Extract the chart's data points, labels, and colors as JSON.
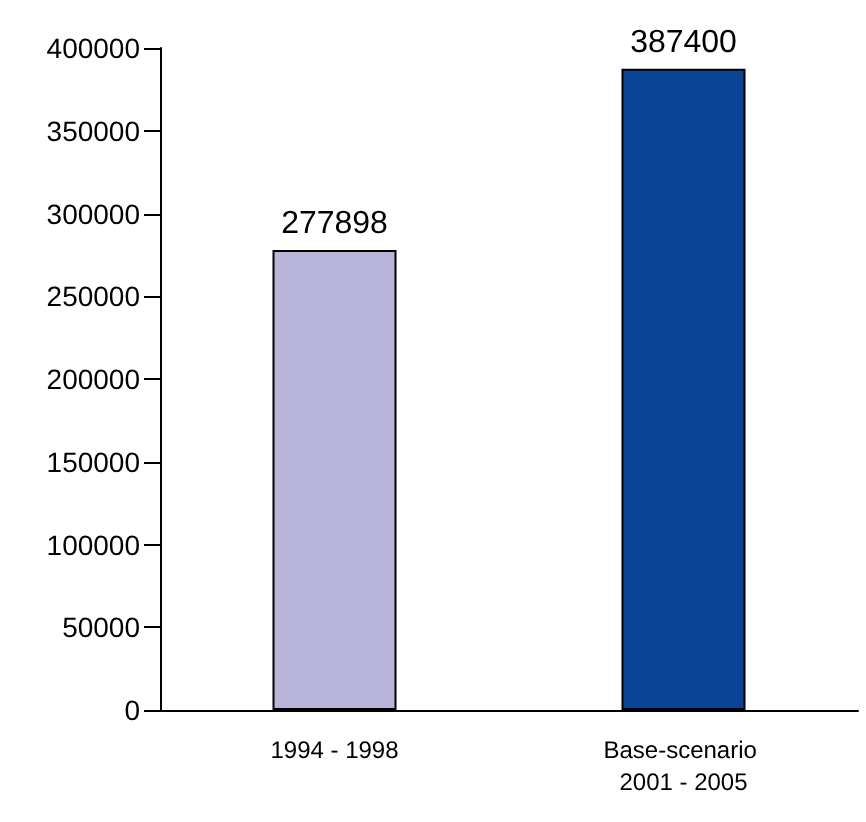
{
  "chart_data": {
    "type": "bar",
    "categories": [
      "1994 - 1998",
      "Base-scenario 2001 - 2005"
    ],
    "values": [
      277898,
      387400
    ],
    "colors": [
      "#b9b4da",
      "#0b4494"
    ],
    "ylim": [
      0,
      400000
    ],
    "yticks": [
      0,
      50000,
      100000,
      150000,
      200000,
      250000,
      300000,
      350000,
      400000
    ],
    "grid": false,
    "data_labels": true
  }
}
